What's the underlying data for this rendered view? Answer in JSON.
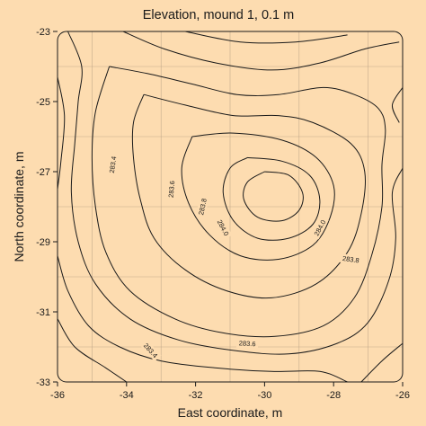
{
  "chart_data": {
    "type": "contour",
    "title": "Elevation, mound 1, 0.1 m",
    "xlabel": "East coordinate, m",
    "ylabel": "North coordinate, m",
    "xlim": [
      -36,
      -26
    ],
    "ylim": [
      -33,
      -23
    ],
    "xticks": [
      "-36",
      "-34",
      "-32",
      "-30",
      "-28",
      "-26"
    ],
    "yticks": [
      "-23",
      "-25",
      "-27",
      "-29",
      "-31",
      "-33"
    ],
    "x_tick_values": [
      -36,
      -34,
      -32,
      -30,
      -28,
      -26
    ],
    "y_tick_values": [
      -23,
      -25,
      -27,
      -29,
      -31,
      -33
    ],
    "grid_x": [
      -35,
      -33,
      -31,
      -29,
      -27
    ],
    "grid_y": [
      -24,
      -26,
      -28,
      -30,
      -32
    ],
    "grid": true,
    "contour_interval": 0.1,
    "peak": {
      "x": -29.8,
      "y": -27.9
    },
    "contour_labels": [
      {
        "text": "283.4",
        "x": -34.4,
        "y": -26.8,
        "rotation": -82
      },
      {
        "text": "283.6",
        "x": -32.7,
        "y": -27.5,
        "rotation": -85
      },
      {
        "text": "283.8",
        "x": -31.8,
        "y": -28.0,
        "rotation": -78
      },
      {
        "text": "284.0",
        "x": -31.2,
        "y": -28.6,
        "rotation": 62
      },
      {
        "text": "284.0",
        "x": -28.4,
        "y": -28.6,
        "rotation": -62
      },
      {
        "text": "283.8",
        "x": -27.5,
        "y": -29.5,
        "rotation": 8
      },
      {
        "text": "283.6",
        "x": -30.5,
        "y": -31.9,
        "rotation": 3
      },
      {
        "text": "283.4",
        "x": -33.3,
        "y": -32.1,
        "rotation": 48
      }
    ],
    "contours": [
      [
        [
          -34.5,
          -24.0
        ],
        [
          -33.4,
          -24.2
        ],
        [
          -32.1,
          -24.5
        ],
        [
          -30.8,
          -24.8
        ],
        [
          -29.6,
          -24.8
        ],
        [
          -28.3,
          -24.6
        ],
        [
          -27.4,
          -24.8
        ],
        [
          -26.7,
          -25.2
        ],
        [
          -26.5,
          -25.8
        ],
        [
          -26.6,
          -26.8
        ],
        [
          -26.6,
          -28.0
        ],
        [
          -26.9,
          -29.4
        ],
        [
          -27.4,
          -30.6
        ],
        [
          -28.3,
          -31.4
        ],
        [
          -29.7,
          -31.7
        ],
        [
          -31.2,
          -31.6
        ],
        [
          -32.6,
          -31.2
        ],
        [
          -33.9,
          -30.4
        ],
        [
          -34.6,
          -29.3
        ],
        [
          -34.9,
          -28.0
        ],
        [
          -35.0,
          -26.6
        ],
        [
          -34.9,
          -25.3
        ],
        [
          -34.5,
          -24.0
        ]
      ],
      [
        [
          -33.5,
          -24.8
        ],
        [
          -32.3,
          -25.1
        ],
        [
          -30.9,
          -25.4
        ],
        [
          -29.6,
          -25.4
        ],
        [
          -28.6,
          -25.6
        ],
        [
          -27.5,
          -26.2
        ],
        [
          -27.1,
          -27.0
        ],
        [
          -27.2,
          -28.2
        ],
        [
          -27.6,
          -29.3
        ],
        [
          -28.5,
          -30.2
        ],
        [
          -29.8,
          -30.6
        ],
        [
          -31.1,
          -30.4
        ],
        [
          -32.3,
          -29.8
        ],
        [
          -33.2,
          -28.9
        ],
        [
          -33.6,
          -27.8
        ],
        [
          -33.8,
          -26.6
        ],
        [
          -33.8,
          -25.6
        ],
        [
          -33.5,
          -24.8
        ]
      ],
      [
        [
          -32.1,
          -26.0
        ],
        [
          -30.9,
          -25.9
        ],
        [
          -29.5,
          -26.1
        ],
        [
          -28.5,
          -26.6
        ],
        [
          -28.0,
          -27.4
        ],
        [
          -28.1,
          -28.3
        ],
        [
          -28.6,
          -29.1
        ],
        [
          -29.6,
          -29.5
        ],
        [
          -30.7,
          -29.4
        ],
        [
          -31.6,
          -28.8
        ],
        [
          -32.2,
          -27.9
        ],
        [
          -32.4,
          -26.9
        ],
        [
          -32.1,
          -26.0
        ]
      ],
      [
        [
          -30.5,
          -26.6
        ],
        [
          -29.5,
          -26.7
        ],
        [
          -28.7,
          -27.1
        ],
        [
          -28.4,
          -27.8
        ],
        [
          -28.6,
          -28.5
        ],
        [
          -29.3,
          -28.9
        ],
        [
          -30.2,
          -28.9
        ],
        [
          -30.9,
          -28.4
        ],
        [
          -31.2,
          -27.6
        ],
        [
          -31.0,
          -26.9
        ],
        [
          -30.5,
          -26.6
        ]
      ],
      [
        [
          -30.0,
          -27.0
        ],
        [
          -29.3,
          -27.1
        ],
        [
          -28.9,
          -27.6
        ],
        [
          -29.0,
          -28.1
        ],
        [
          -29.5,
          -28.4
        ],
        [
          -30.2,
          -28.3
        ],
        [
          -30.6,
          -27.8
        ],
        [
          -30.5,
          -27.3
        ],
        [
          -30.0,
          -27.0
        ]
      ],
      [
        [
          -35.7,
          -23.0
        ],
        [
          -35.3,
          -24.0
        ],
        [
          -35.4,
          -25.0
        ],
        [
          -35.5,
          -26.2
        ],
        [
          -35.6,
          -27.6
        ],
        [
          -35.4,
          -29.0
        ],
        [
          -34.9,
          -30.2
        ],
        [
          -33.9,
          -31.2
        ],
        [
          -32.5,
          -31.8
        ],
        [
          -30.9,
          -32.1
        ],
        [
          -29.3,
          -32.2
        ],
        [
          -27.9,
          -31.9
        ],
        [
          -27.0,
          -31.3
        ],
        [
          -26.4,
          -30.1
        ],
        [
          -26.2,
          -28.9
        ],
        [
          -26.3,
          -27.6
        ],
        [
          -26.0,
          -26.9
        ]
      ],
      [
        [
          -36.0,
          -24.3
        ],
        [
          -35.8,
          -25.4
        ],
        [
          -35.9,
          -26.7
        ],
        [
          -36.0,
          -27.5
        ]
      ],
      [
        [
          -36.0,
          -29.4
        ],
        [
          -35.7,
          -30.4
        ],
        [
          -35.1,
          -31.4
        ],
        [
          -34.2,
          -32.0
        ],
        [
          -33.0,
          -32.4
        ],
        [
          -31.4,
          -32.6
        ],
        [
          -29.8,
          -32.7
        ],
        [
          -28.4,
          -32.7
        ],
        [
          -27.6,
          -33.0
        ]
      ],
      [
        [
          -36.0,
          -31.2
        ],
        [
          -35.5,
          -32.0
        ],
        [
          -34.6,
          -32.6
        ],
        [
          -34.0,
          -33.0
        ]
      ],
      [
        [
          -34.1,
          -23.0
        ],
        [
          -32.9,
          -23.5
        ],
        [
          -31.4,
          -23.9
        ],
        [
          -29.8,
          -24.1
        ],
        [
          -28.4,
          -23.9
        ],
        [
          -27.1,
          -23.5
        ],
        [
          -26.1,
          -23.3
        ]
      ],
      [
        [
          -32.3,
          -23.0
        ],
        [
          -30.7,
          -23.3
        ],
        [
          -29.1,
          -23.3
        ],
        [
          -27.6,
          -23.1
        ]
      ],
      [
        [
          -26.0,
          -24.6
        ],
        [
          -26.3,
          -25.1
        ],
        [
          -26.1,
          -25.6
        ]
      ],
      [
        [
          -27.2,
          -33.0
        ],
        [
          -26.6,
          -32.4
        ],
        [
          -26.0,
          -31.9
        ]
      ]
    ]
  }
}
